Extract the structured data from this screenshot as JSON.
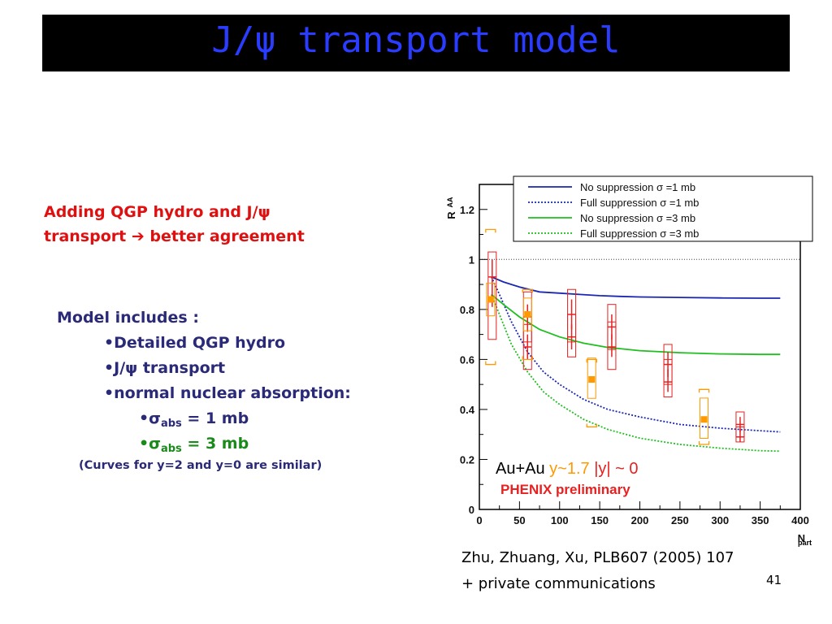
{
  "slide": {
    "title": "J/ψ transport model",
    "headline_line1": "Adding QGP hydro and J/ψ",
    "headline_line2": "transport",
    "headline_arrow": "➔",
    "headline_line2_rest": "better agreement",
    "model_heading": "Model includes :",
    "bullets": [
      "•Detailed QGP hydro",
      "•J/ψ transport",
      "•normal nuclear absorption:"
    ],
    "sigma_symbol": "•σ",
    "sigma_sub": "abs",
    "sigma_1": "= 1 mb",
    "sigma_3": "= 3 mb",
    "note": "(Curves for y=2 and y=0 are similar)",
    "citation_line1": "Zhu, Zhuang, Xu, PLB607 (2005) 107",
    "citation_line2": "+ private communications",
    "page_number": "41"
  },
  "colors": {
    "title_bg": "#000000",
    "title_text": "#2a3cff",
    "headline": "#e01010",
    "blue_curve": "#1a27b0",
    "green_curve": "#1fbf1f",
    "red_data": "#e82020",
    "orange_data": "#ff9900"
  },
  "chart_data": {
    "type": "line",
    "xlabel": "N",
    "xlabel_sub": "part",
    "ylabel": "R",
    "ylabel_sub": "AA",
    "xlim": [
      0,
      400
    ],
    "ylim": [
      0,
      1.3
    ],
    "xticks": [
      "0",
      "50",
      "100",
      "150",
      "200",
      "250",
      "300",
      "350",
      "400"
    ],
    "yticks": [
      "0",
      "0.2",
      "0.4",
      "0.6",
      "0.8",
      "1",
      "1.2"
    ],
    "reference_line_y": 1,
    "legend_position": "top-right",
    "annotation_system": "Au+Au",
    "annotation_rapidity_fwd": "y~1.7",
    "annotation_rapidity_mid": "|y| ~ 0",
    "annotation_experiment": "PHENIX preliminary",
    "series": [
      {
        "name": "No suppression σ =1 mb",
        "style": "solid",
        "color": "#1a27b0",
        "x": [
          15,
          30,
          50,
          75,
          100,
          125,
          150,
          175,
          200,
          250,
          300,
          350,
          375
        ],
        "y": [
          0.93,
          0.91,
          0.89,
          0.87,
          0.865,
          0.86,
          0.855,
          0.852,
          0.85,
          0.848,
          0.846,
          0.845,
          0.845
        ]
      },
      {
        "name": "Full suppression σ =1 mb",
        "style": "dotted",
        "color": "#1a27b0",
        "x": [
          15,
          25,
          40,
          60,
          80,
          100,
          130,
          160,
          200,
          250,
          300,
          350,
          375
        ],
        "y": [
          0.93,
          0.86,
          0.75,
          0.63,
          0.55,
          0.5,
          0.44,
          0.4,
          0.37,
          0.34,
          0.325,
          0.315,
          0.31
        ]
      },
      {
        "name": "No suppression σ =3 mb",
        "style": "solid",
        "color": "#1fbf1f",
        "x": [
          15,
          30,
          50,
          75,
          100,
          130,
          160,
          200,
          250,
          300,
          350,
          375
        ],
        "y": [
          0.86,
          0.82,
          0.77,
          0.72,
          0.69,
          0.665,
          0.648,
          0.635,
          0.627,
          0.622,
          0.62,
          0.62
        ]
      },
      {
        "name": "Full suppression σ =3 mb",
        "style": "dotted",
        "color": "#1fbf1f",
        "x": [
          15,
          25,
          40,
          60,
          80,
          100,
          130,
          160,
          200,
          250,
          300,
          350,
          375
        ],
        "y": [
          0.86,
          0.78,
          0.66,
          0.55,
          0.47,
          0.42,
          0.36,
          0.32,
          0.285,
          0.26,
          0.245,
          0.235,
          0.233
        ]
      }
    ],
    "data_points": [
      {
        "set": "mid-rapidity",
        "x": 16,
        "y": 0.93,
        "ylow": 0.81,
        "yhigh": 1.0,
        "syslow": 0.68,
        "syshigh": 1.03
      },
      {
        "set": "mid-rapidity",
        "x": 60,
        "y": 0.77,
        "ylow": 0.71,
        "yhigh": 0.82,
        "syslow": 0.67,
        "syshigh": 0.87
      },
      {
        "set": "mid-rapidity",
        "x": 60,
        "y": 0.65,
        "ylow": 0.6,
        "yhigh": 0.7,
        "syslow": 0.56,
        "syshigh": 0.74
      },
      {
        "set": "mid-rapidity",
        "x": 115,
        "y": 0.78,
        "ylow": 0.72,
        "yhigh": 0.84,
        "syslow": 0.67,
        "syshigh": 0.88
      },
      {
        "set": "mid-rapidity",
        "x": 115,
        "y": 0.69,
        "ylow": 0.64,
        "yhigh": 0.74,
        "syslow": 0.61,
        "syshigh": 0.78
      },
      {
        "set": "mid-rapidity",
        "x": 165,
        "y": 0.73,
        "ylow": 0.68,
        "yhigh": 0.78,
        "syslow": 0.64,
        "syshigh": 0.82
      },
      {
        "set": "mid-rapidity",
        "x": 165,
        "y": 0.65,
        "ylow": 0.61,
        "yhigh": 0.7,
        "syslow": 0.56,
        "syshigh": 0.75
      },
      {
        "set": "mid-rapidity",
        "x": 235,
        "y": 0.58,
        "ylow": 0.53,
        "yhigh": 0.63,
        "syslow": 0.5,
        "syshigh": 0.66
      },
      {
        "set": "mid-rapidity",
        "x": 235,
        "y": 0.51,
        "ylow": 0.47,
        "yhigh": 0.56,
        "syslow": 0.45,
        "syshigh": 0.6
      },
      {
        "set": "mid-rapidity",
        "x": 325,
        "y": 0.34,
        "ylow": 0.31,
        "yhigh": 0.37,
        "syslow": 0.29,
        "syshigh": 0.39
      },
      {
        "set": "mid-rapidity",
        "x": 325,
        "y": 0.29,
        "ylow": 0.27,
        "yhigh": 0.32,
        "syslow": 0.27,
        "syshigh": 0.33
      },
      {
        "set": "forward",
        "x": 14,
        "y": 0.84,
        "ylow": 0.82,
        "yhigh": 0.86,
        "syslow": 0.58,
        "syshigh": 1.12
      },
      {
        "set": "forward",
        "x": 60,
        "y": 0.78,
        "ylow": 0.76,
        "yhigh": 0.8,
        "syslow": 0.6,
        "syshigh": 0.88
      },
      {
        "set": "forward",
        "x": 140,
        "y": 0.52,
        "ylow": 0.49,
        "yhigh": 0.56,
        "syslow": 0.33,
        "syshigh": 0.6
      },
      {
        "set": "forward",
        "x": 280,
        "y": 0.36,
        "ylow": 0.33,
        "yhigh": 0.4,
        "syslow": 0.26,
        "syshigh": 0.48
      }
    ]
  }
}
